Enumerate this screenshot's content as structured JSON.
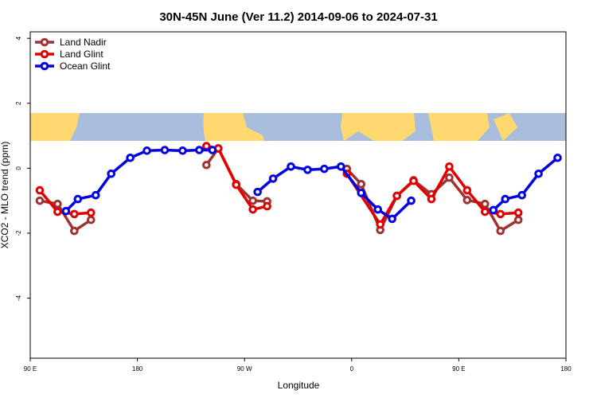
{
  "chart_data": {
    "type": "line",
    "title": "30N-45N June (Ver 11.2)   2014-09-06 to 2024-07-31",
    "xlabel": "Longitude",
    "ylabel": "XCO2 - MLO trend (ppm)",
    "xlim": [
      90,
      540
    ],
    "xticks": [
      {
        "value": 90,
        "label": "90 E"
      },
      {
        "value": 180,
        "label": "180"
      },
      {
        "value": 270,
        "label": "90 W"
      },
      {
        "value": 360,
        "label": "0"
      },
      {
        "value": 450,
        "label": "90 E"
      },
      {
        "value": 540,
        "label": "180"
      }
    ],
    "ylim": [
      -5.85,
      4.2
    ],
    "yticks": [
      -4,
      -2,
      0,
      2,
      4
    ],
    "legend": "top-left",
    "series": [
      {
        "name": "Land Nadir",
        "color": "#a03232",
        "x": [
          98,
          113,
          127,
          141,
          null,
          238,
          248,
          263,
          277,
          289,
          null,
          356,
          368,
          384,
          398,
          412,
          427,
          442,
          457,
          472,
          485,
          500
        ],
        "values": [
          -1.0,
          -1.1,
          -1.93,
          -1.59,
          null,
          0.1,
          0.61,
          -0.49,
          -1.0,
          -1.02,
          null,
          -0.02,
          -0.49,
          -1.9,
          -0.85,
          -0.37,
          -0.8,
          -0.29,
          -0.98,
          -1.1,
          -1.93,
          -1.59
        ]
      },
      {
        "name": "Land Glint",
        "color": "#e00000",
        "x": [
          98,
          113,
          127,
          141,
          null,
          238,
          248,
          263,
          277,
          289,
          null,
          356,
          384,
          398,
          412,
          427,
          442,
          457,
          472,
          485,
          500
        ],
        "values": [
          -0.68,
          -1.34,
          -1.41,
          -1.37,
          null,
          0.68,
          0.61,
          -0.51,
          -1.27,
          -1.17,
          null,
          -0.17,
          -1.73,
          -0.85,
          -0.39,
          -0.95,
          0.05,
          -0.68,
          -1.34,
          -1.41,
          -1.37
        ]
      },
      {
        "name": "Ocean Glint",
        "color": "#0000e0",
        "x": [
          120,
          130,
          145,
          158,
          174,
          188,
          203,
          218,
          232,
          243,
          null,
          281,
          294,
          309,
          323,
          337,
          351,
          368,
          382,
          394,
          410,
          null,
          479,
          489,
          503,
          517,
          533
        ],
        "values": [
          -1.32,
          -0.95,
          -0.83,
          -0.17,
          0.32,
          0.54,
          0.56,
          0.54,
          0.56,
          0.56,
          null,
          -0.73,
          -0.32,
          0.05,
          -0.05,
          -0.02,
          0.05,
          -0.76,
          -1.27,
          -1.56,
          -1.0,
          null,
          -1.29,
          -0.95,
          -0.83,
          -0.17,
          0.32
        ]
      }
    ]
  }
}
